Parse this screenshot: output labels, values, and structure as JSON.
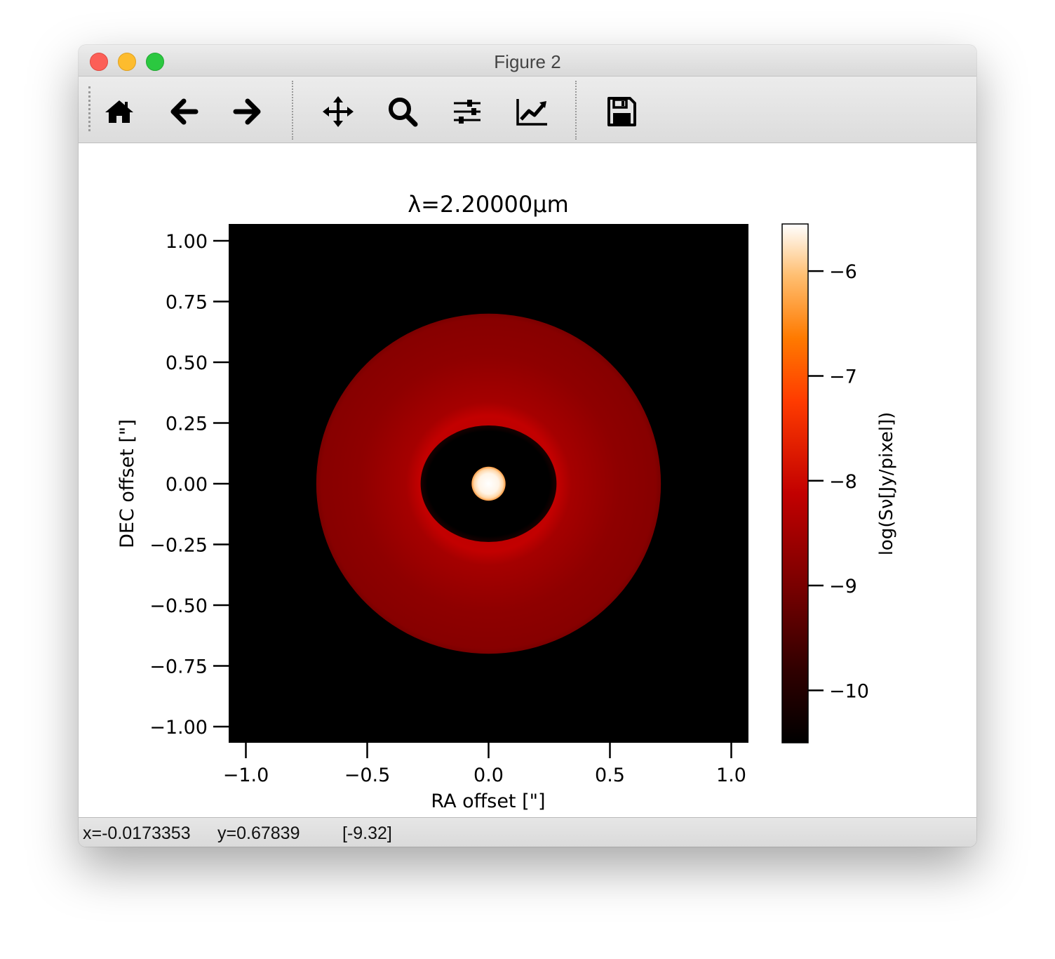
{
  "window": {
    "title": "Figure 2"
  },
  "toolbar": {
    "buttons": [
      {
        "id": "home",
        "icon": "home-icon"
      },
      {
        "id": "back",
        "icon": "arrow-left-icon"
      },
      {
        "id": "forward",
        "icon": "arrow-right-icon"
      },
      {
        "id": "pan",
        "icon": "move-icon"
      },
      {
        "id": "zoom",
        "icon": "magnifier-icon"
      },
      {
        "id": "configure",
        "icon": "sliders-icon"
      },
      {
        "id": "edit",
        "icon": "line-chart-icon"
      },
      {
        "id": "save",
        "icon": "floppy-disk-icon"
      }
    ]
  },
  "status": {
    "x": "x=-0.0173353",
    "y": "y=0.67839",
    "value": "[-9.32]"
  },
  "chart_data": {
    "type": "heatmap",
    "title": "λ=2.20000μm",
    "xlabel": "RA offset [\"]",
    "ylabel": "DEC offset [\"]",
    "colorbar_label": "log(Sν[Jy/pixel])",
    "xlim": [
      -1.07,
      1.07
    ],
    "ylim": [
      -1.07,
      1.07
    ],
    "xticks": [
      -1.0,
      -0.5,
      0.0,
      0.5,
      1.0
    ],
    "xtick_labels": [
      "−1.0",
      "−0.5",
      "0.0",
      "0.5",
      "1.0"
    ],
    "yticks": [
      1.0,
      0.75,
      0.5,
      0.25,
      0.0,
      -0.25,
      -0.5,
      -0.75,
      -1.0
    ],
    "ytick_labels": [
      "1.00",
      "0.75",
      "0.50",
      "0.25",
      "0.00",
      "−0.25",
      "−0.50",
      "−0.75",
      "−1.00"
    ],
    "clim": [
      -10.5,
      -5.55
    ],
    "cticks": [
      -6,
      -7,
      -8,
      -9,
      -10
    ],
    "ctick_labels": [
      "−6",
      "−7",
      "−8",
      "−9",
      "−10"
    ],
    "colormap": "gist_heat",
    "features": {
      "star": {
        "radius": 0.07,
        "value": -5.6
      },
      "gap": {
        "semi_major": 0.28,
        "semi_minor": 0.24,
        "center_y": 0.0
      },
      "disk": {
        "semi_major": 0.71,
        "semi_minor": 0.7,
        "center_y": 0.0,
        "inner_value": -8.1,
        "outer_value": -8.9
      },
      "background_value": -10.5
    }
  }
}
